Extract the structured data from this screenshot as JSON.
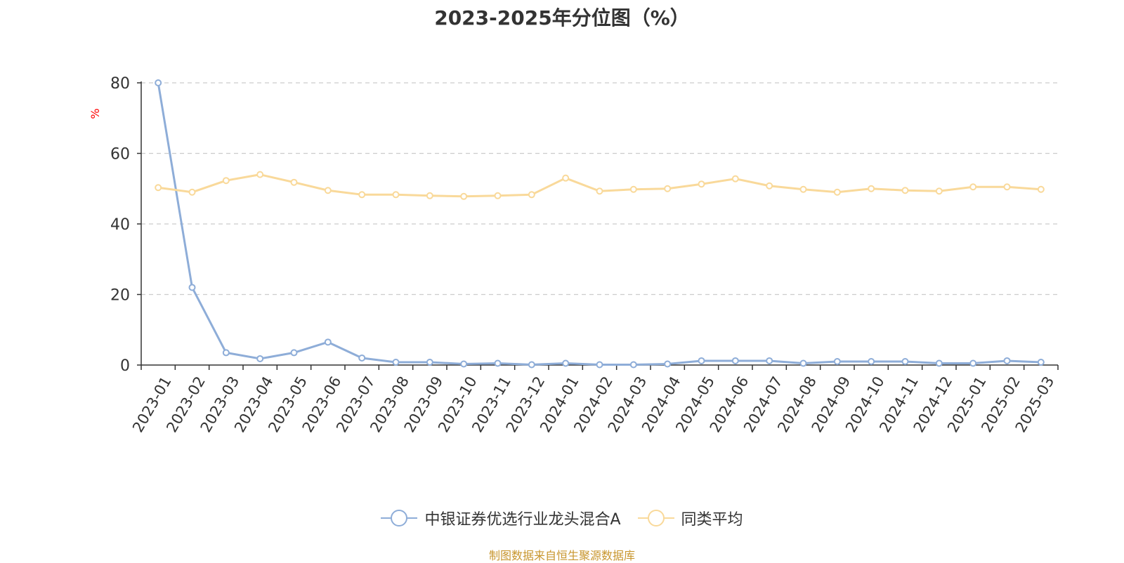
{
  "chart_data": {
    "type": "line",
    "title": "2023-2025年分位图（%）",
    "ylabel": "%",
    "xlabel": "",
    "ylim": [
      0,
      80
    ],
    "yticks": [
      0,
      20,
      40,
      60,
      80
    ],
    "grid": true,
    "legend_position": "bottom",
    "categories": [
      "2023-01",
      "2023-02",
      "2023-03",
      "2023-04",
      "2023-05",
      "2023-06",
      "2023-07",
      "2023-08",
      "2023-09",
      "2023-10",
      "2023-11",
      "2023-12",
      "2024-01",
      "2024-02",
      "2024-03",
      "2024-04",
      "2024-05",
      "2024-06",
      "2024-07",
      "2024-08",
      "2024-09",
      "2024-10",
      "2024-11",
      "2024-12",
      "2025-01",
      "2025-02",
      "2025-03"
    ],
    "series": [
      {
        "name": "中银证券优选行业龙头混合A",
        "color": "#8eadd8",
        "values": [
          80,
          22,
          3.5,
          1.8,
          3.5,
          6.5,
          2.0,
          0.8,
          0.8,
          0.3,
          0.5,
          0.1,
          0.5,
          0.1,
          0.1,
          0.3,
          1.2,
          1.2,
          1.2,
          0.5,
          1.0,
          1.0,
          1.0,
          0.5,
          0.5,
          1.2,
          0.8
        ]
      },
      {
        "name": "同类平均",
        "color": "#f9d99a",
        "values": [
          50.3,
          49.0,
          52.3,
          54.0,
          51.8,
          49.5,
          48.3,
          48.3,
          48.0,
          47.8,
          48.0,
          48.3,
          53.0,
          49.3,
          49.8,
          50.0,
          51.3,
          52.8,
          50.8,
          49.8,
          49.0,
          50.0,
          49.5,
          49.3,
          50.5,
          50.5,
          49.8
        ]
      }
    ]
  },
  "source_note": "制图数据来自恒生聚源数据库"
}
